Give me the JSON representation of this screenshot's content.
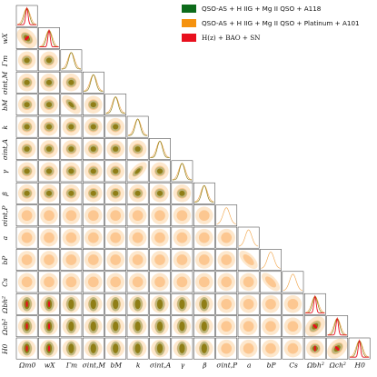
{
  "chart_data": {
    "type": "corner",
    "parameters": [
      "Ωm0",
      "wX",
      "Γm",
      "σint,M",
      "bM",
      "k",
      "σint,A",
      "γ",
      "β",
      "σint,P",
      "a",
      "bP",
      "Cs",
      "Ωbh²",
      "Ωch²",
      "H0"
    ],
    "axis_labels_bottom": [
      "Ωm0",
      "wX",
      "Γm",
      "σint,M",
      "bM",
      "k",
      "σint,A",
      "γ",
      "β",
      "σint,P",
      "a",
      "bP",
      "Cs",
      "Ωbh²",
      "Ωch²",
      "H0"
    ],
    "axis_labels_left": [
      "wX",
      "Γm",
      "σint,M",
      "bM",
      "k",
      "σint,A",
      "γ",
      "β",
      "σint,P",
      "a",
      "bP",
      "Cs",
      "Ωbh²",
      "Ωch²",
      "H0"
    ],
    "series": [
      {
        "name": "QSO-AS + H IIG + Mg II QSO + A118",
        "color": "#0c6b1a",
        "params": [
          "Ωm0",
          "wX",
          "Γm",
          "σint,M",
          "bM",
          "k",
          "σint,A",
          "γ",
          "β",
          "Ωbh²",
          "Ωch²",
          "H0"
        ]
      },
      {
        "name": "QSO-AS + H IIG + Mg II QSO + Platinum + A101",
        "color": "#f5920e",
        "params": [
          "Ωm0",
          "wX",
          "Γm",
          "σint,M",
          "bM",
          "k",
          "σint,A",
          "γ",
          "β",
          "σint,P",
          "a",
          "bP",
          "Cs",
          "Ωbh²",
          "Ωch²",
          "H0"
        ]
      },
      {
        "name": "H(z) + BAO + SN",
        "color": "#e8101e",
        "params": [
          "Ωm0",
          "wX",
          "Ωbh²",
          "Ωch²",
          "H0"
        ]
      }
    ],
    "grid": false,
    "legend": "top-right"
  },
  "legend": {
    "items": [
      {
        "label": "QSO-AS + H IIG + Mg II QSO + A118",
        "color": "#0c6b1a"
      },
      {
        "label": "QSO-AS + H IIG + Mg II QSO + Platinum + A101",
        "color": "#f5920e"
      },
      {
        "label": "H(z) + BAO + SN",
        "color": "#e8101e"
      }
    ]
  },
  "colors": {
    "green_fill_outer": "#b9b47a",
    "green_fill_inner": "#8f7e16",
    "orange_fill_outer": "#fde7cc",
    "orange_fill_inner": "#fbbf82",
    "red_fill": "#e8101e",
    "axis": "#333333"
  }
}
